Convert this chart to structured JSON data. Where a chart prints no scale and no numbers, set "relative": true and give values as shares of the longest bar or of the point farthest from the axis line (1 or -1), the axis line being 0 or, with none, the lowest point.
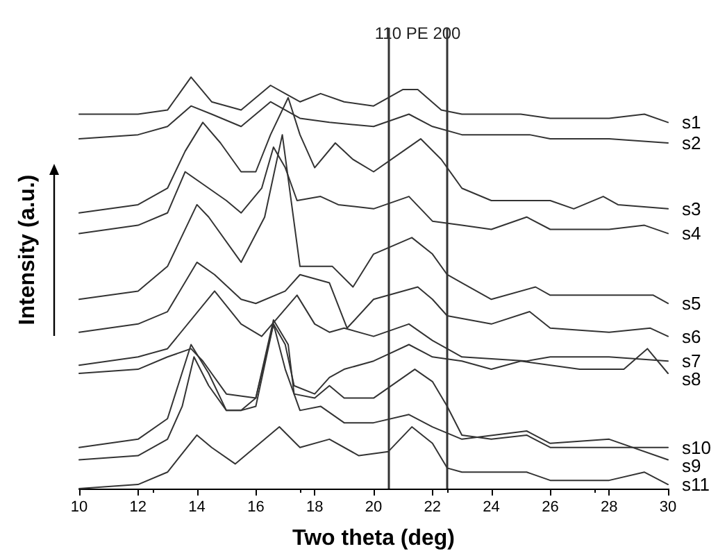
{
  "chart_data": {
    "type": "line",
    "relative": true,
    "xlabel": "Two theta (deg)",
    "ylabel": "Intensity (a.u.)",
    "xlim": [
      10,
      30
    ],
    "xticks": [
      10,
      12,
      14,
      16,
      18,
      20,
      22,
      24,
      26,
      28,
      30
    ],
    "grid": false,
    "legend": false,
    "line_style": "solid",
    "annotations": [
      "110 PE 200"
    ],
    "ref_lines": [
      {
        "axis": "x",
        "value": 20.5,
        "color": "#333333"
      },
      {
        "axis": "x",
        "value": 22.5,
        "color": "#333333"
      }
    ],
    "series": [
      {
        "name": "s1",
        "color": "#333333",
        "x": [
          10,
          12,
          13,
          13.8,
          14.5,
          15.5,
          16.5,
          17,
          17.5,
          18.2,
          19,
          20,
          21,
          21.5,
          22.3,
          23,
          25,
          26,
          28,
          29.2,
          30
        ],
        "values": [
          0.91,
          0.91,
          0.92,
          1.0,
          0.94,
          0.92,
          0.98,
          0.96,
          0.94,
          0.96,
          0.94,
          0.93,
          0.97,
          0.97,
          0.92,
          0.91,
          0.91,
          0.9,
          0.9,
          0.91,
          0.89
        ]
      },
      {
        "name": "s2",
        "color": "#333333",
        "x": [
          10,
          12,
          13,
          13.8,
          14.5,
          15.5,
          16.5,
          17.5,
          18.5,
          20,
          21.2,
          22,
          23,
          25,
          25.3,
          26,
          28,
          30
        ],
        "values": [
          0.85,
          0.86,
          0.88,
          0.93,
          0.91,
          0.88,
          0.94,
          0.9,
          0.89,
          0.88,
          0.91,
          0.88,
          0.86,
          0.86,
          0.86,
          0.85,
          0.85,
          0.84
        ]
      },
      {
        "name": "s3",
        "color": "#333333",
        "x": [
          10,
          12,
          13,
          13.6,
          14.2,
          14.8,
          15.5,
          16,
          16.5,
          17.1,
          17.5,
          18,
          18.7,
          19.3,
          20,
          21,
          21.6,
          22.3,
          23,
          24,
          26,
          26.8,
          27.8,
          28.3,
          30
        ],
        "values": [
          0.67,
          0.69,
          0.73,
          0.82,
          0.89,
          0.84,
          0.77,
          0.77,
          0.86,
          0.95,
          0.86,
          0.78,
          0.84,
          0.8,
          0.77,
          0.82,
          0.85,
          0.8,
          0.73,
          0.7,
          0.7,
          0.68,
          0.71,
          0.69,
          0.68
        ]
      },
      {
        "name": "s4",
        "color": "#333333",
        "x": [
          10,
          12,
          13,
          13.6,
          14.2,
          15,
          15.5,
          16.2,
          16.6,
          17,
          17.4,
          18.2,
          18.8,
          20,
          21.2,
          22,
          23,
          24,
          25.2,
          26,
          28,
          29.2,
          30
        ],
        "values": [
          0.62,
          0.64,
          0.67,
          0.77,
          0.74,
          0.7,
          0.67,
          0.73,
          0.83,
          0.78,
          0.7,
          0.71,
          0.69,
          0.68,
          0.71,
          0.65,
          0.64,
          0.63,
          0.66,
          0.63,
          0.63,
          0.64,
          0.62
        ]
      },
      {
        "name": "s5",
        "color": "#333333",
        "x": [
          10,
          12,
          13,
          14,
          14.4,
          15.5,
          16.3,
          16.9,
          17.5,
          18.6,
          19.3,
          20,
          21.3,
          22,
          22.5,
          23,
          24,
          25.5,
          26,
          28,
          29.5,
          30
        ],
        "values": [
          0.46,
          0.48,
          0.54,
          0.69,
          0.66,
          0.55,
          0.66,
          0.86,
          0.54,
          0.54,
          0.49,
          0.57,
          0.61,
          0.57,
          0.52,
          0.5,
          0.46,
          0.49,
          0.47,
          0.47,
          0.47,
          0.45
        ]
      },
      {
        "name": "s6",
        "color": "#333333",
        "x": [
          10,
          12,
          13,
          14,
          14.6,
          15.5,
          16,
          17,
          17.5,
          18.5,
          19.1,
          20,
          21.5,
          22,
          22.5,
          24,
          25.3,
          26,
          28,
          29.4,
          30
        ],
        "values": [
          0.38,
          0.4,
          0.43,
          0.55,
          0.52,
          0.46,
          0.45,
          0.48,
          0.52,
          0.5,
          0.39,
          0.46,
          0.49,
          0.46,
          0.42,
          0.4,
          0.43,
          0.39,
          0.38,
          0.39,
          0.37
        ]
      },
      {
        "name": "s7",
        "color": "#333333",
        "x": [
          10,
          12,
          13,
          14.6,
          15.5,
          16.2,
          17.4,
          18,
          18.5,
          19,
          20,
          21.2,
          22,
          23,
          25.2,
          26,
          28,
          30
        ],
        "values": [
          0.3,
          0.32,
          0.34,
          0.48,
          0.4,
          0.37,
          0.47,
          0.4,
          0.38,
          0.39,
          0.37,
          0.4,
          0.36,
          0.32,
          0.31,
          0.32,
          0.32,
          0.31
        ]
      },
      {
        "name": "s8",
        "color": "#333333",
        "x": [
          10,
          12,
          13,
          13.8,
          14.2,
          15,
          16,
          16.6,
          17,
          17.3,
          18,
          18.5,
          19,
          20,
          21.2,
          22,
          23,
          24,
          25,
          27,
          28.5,
          29.3,
          30
        ],
        "values": [
          0.28,
          0.29,
          0.32,
          0.34,
          0.31,
          0.23,
          0.22,
          0.4,
          0.35,
          0.25,
          0.23,
          0.27,
          0.29,
          0.31,
          0.35,
          0.32,
          0.31,
          0.29,
          0.31,
          0.29,
          0.29,
          0.34,
          0.28
        ]
      },
      {
        "name": "s9",
        "color": "#333333",
        "x": [
          10,
          12,
          13,
          13.5,
          13.9,
          14.4,
          15,
          15.5,
          16,
          16.6,
          17,
          17.5,
          18.2,
          19,
          20,
          21.2,
          22,
          23,
          25.2,
          26,
          28,
          30
        ],
        "values": [
          0.07,
          0.08,
          0.12,
          0.2,
          0.32,
          0.25,
          0.19,
          0.19,
          0.2,
          0.4,
          0.29,
          0.19,
          0.2,
          0.16,
          0.16,
          0.18,
          0.15,
          0.12,
          0.14,
          0.11,
          0.12,
          0.07
        ]
      },
      {
        "name": "s10",
        "color": "#333333",
        "x": [
          10,
          12,
          13,
          13.8,
          14.4,
          15,
          15.5,
          16,
          16.6,
          17.1,
          17.3,
          18,
          18.5,
          19,
          20,
          21.4,
          22,
          22.5,
          23,
          24,
          25.2,
          26,
          28,
          30
        ],
        "values": [
          0.1,
          0.12,
          0.17,
          0.35,
          0.28,
          0.19,
          0.19,
          0.22,
          0.41,
          0.35,
          0.23,
          0.22,
          0.25,
          0.22,
          0.22,
          0.29,
          0.26,
          0.2,
          0.13,
          0.12,
          0.13,
          0.1,
          0.1,
          0.1
        ]
      },
      {
        "name": "s11",
        "color": "#333333",
        "x": [
          10,
          12,
          13,
          14,
          14.5,
          15.3,
          16.8,
          17.5,
          18.5,
          19.5,
          20.5,
          21.3,
          22,
          22.5,
          23,
          25.2,
          26,
          28,
          29.2,
          30
        ],
        "values": [
          0,
          0.01,
          0.04,
          0.13,
          0.1,
          0.06,
          0.15,
          0.1,
          0.12,
          0.08,
          0.09,
          0.15,
          0.11,
          0.05,
          0.04,
          0.04,
          0.02,
          0.02,
          0.04,
          0.01
        ]
      }
    ]
  }
}
